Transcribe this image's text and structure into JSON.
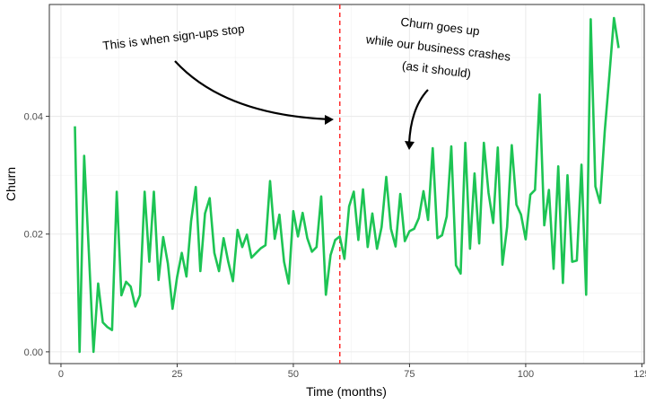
{
  "chart_data": {
    "type": "line",
    "title": "",
    "xlabel": "Time (months)",
    "ylabel": "Churn",
    "xlim": [
      -2.5,
      125.5
    ],
    "ylim": [
      -0.002,
      0.059
    ],
    "xticks": [
      0,
      25,
      50,
      75,
      100,
      125
    ],
    "xtick_labels": [
      "0",
      "25",
      "50",
      "75",
      "100",
      "125"
    ],
    "yticks": [
      0.0,
      0.02,
      0.04
    ],
    "ytick_labels": [
      "0.00",
      "0.02",
      "0.04"
    ],
    "grid": true,
    "line_color": "#1DC454",
    "vline": {
      "x": 60,
      "color": "#FF2A2A",
      "style": "dashed"
    },
    "series": [
      {
        "x": [
          3,
          4,
          5,
          6,
          7,
          8,
          9,
          10,
          11,
          12,
          13,
          14,
          15,
          16,
          17,
          18,
          19,
          20,
          21,
          22,
          23,
          24,
          25,
          26,
          27,
          28,
          29,
          30,
          31,
          32,
          33,
          34,
          35,
          36,
          37,
          38,
          39,
          40,
          41,
          42,
          43,
          44,
          45,
          46,
          47,
          48,
          49,
          50,
          51,
          52,
          53,
          54,
          55,
          56,
          57,
          58,
          59,
          60,
          61,
          62,
          63,
          64,
          65,
          66,
          67,
          68,
          69,
          70,
          71,
          72,
          73,
          74,
          75,
          76,
          77,
          78,
          79,
          80,
          81,
          82,
          83,
          84,
          85,
          86,
          87,
          88,
          89,
          90,
          91,
          92,
          93,
          94,
          95,
          96,
          97,
          98,
          99,
          100,
          101,
          102,
          103,
          104,
          105,
          106,
          107,
          108,
          109,
          110,
          111,
          112,
          113,
          114,
          115,
          116,
          117,
          118,
          119,
          120
        ],
        "y": [
          0.0383,
          0.0,
          0.0333,
          0.017,
          0.0,
          0.0116,
          0.005,
          0.0042,
          0.0037,
          0.0272,
          0.0096,
          0.0119,
          0.0111,
          0.0077,
          0.0096,
          0.0272,
          0.0153,
          0.0272,
          0.0122,
          0.0195,
          0.015,
          0.0073,
          0.0127,
          0.0168,
          0.0128,
          0.0222,
          0.028,
          0.0137,
          0.0235,
          0.0261,
          0.0168,
          0.0137,
          0.0193,
          0.0153,
          0.012,
          0.0207,
          0.0178,
          0.0199,
          0.016,
          0.0168,
          0.0176,
          0.0181,
          0.029,
          0.0192,
          0.0233,
          0.0153,
          0.0116,
          0.0239,
          0.0196,
          0.0236,
          0.0193,
          0.017,
          0.0178,
          0.0264,
          0.0097,
          0.0164,
          0.019,
          0.0196,
          0.0158,
          0.0247,
          0.0272,
          0.019,
          0.0276,
          0.0178,
          0.0235,
          0.0175,
          0.0212,
          0.0297,
          0.0209,
          0.0179,
          0.0268,
          0.0188,
          0.0205,
          0.0209,
          0.0227,
          0.0273,
          0.0224,
          0.0346,
          0.0193,
          0.0198,
          0.023,
          0.0349,
          0.0147,
          0.0133,
          0.0355,
          0.0175,
          0.0303,
          0.0184,
          0.0355,
          0.027,
          0.0219,
          0.0347,
          0.0148,
          0.0212,
          0.0351,
          0.025,
          0.0233,
          0.0191,
          0.0267,
          0.0275,
          0.0437,
          0.0215,
          0.0275,
          0.0141,
          0.0315,
          0.0117,
          0.03,
          0.0153,
          0.0155,
          0.0318,
          0.0097,
          0.0565,
          0.0281,
          0.0253,
          0.0374,
          0.047,
          0.0567,
          0.0516
        ]
      }
    ],
    "annotations": [
      {
        "text": [
          "This is when sign-ups stop"
        ]
      },
      {
        "text": [
          "Churn goes up",
          "while our business crashes",
          "(as it should)"
        ]
      }
    ]
  }
}
